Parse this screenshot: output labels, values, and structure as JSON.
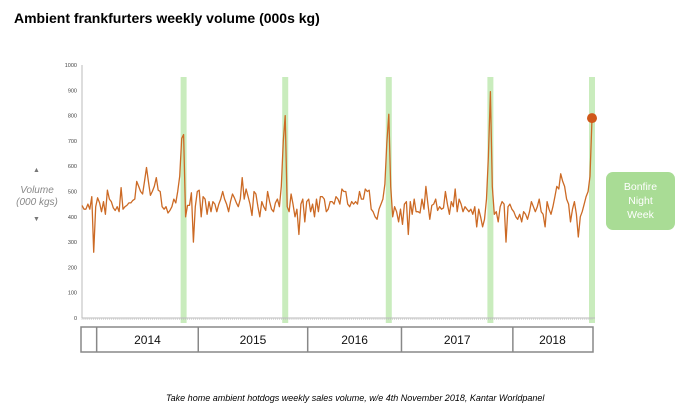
{
  "chart_data": {
    "type": "line",
    "title": "Ambient frankfurters weekly volume (000s kg)",
    "ylabel": "Volume (000 kgs)",
    "xlabel": "",
    "ylim": [
      0,
      1000
    ],
    "yticks": [
      0,
      100,
      200,
      300,
      400,
      500,
      600,
      700,
      800,
      900,
      1000
    ],
    "year_labels": [
      "",
      "2014",
      "2015",
      "2016",
      "2017",
      "2018"
    ],
    "year_week_counts": [
      8,
      52,
      56,
      48,
      57,
      41
    ],
    "highlight_weeks": [
      52,
      104,
      157,
      209,
      261
    ],
    "series": [
      {
        "name": "Weekly volume",
        "color": "#cc6a25",
        "values": [
          445,
          430,
          430,
          450,
          430,
          480,
          260,
          440,
          475,
          455,
          420,
          460,
          410,
          505,
          470,
          460,
          435,
          425,
          440,
          420,
          515,
          430,
          440,
          445,
          455,
          455,
          465,
          470,
          540,
          520,
          500,
          490,
          540,
          595,
          540,
          485,
          500,
          520,
          555,
          505,
          500,
          440,
          430,
          440,
          415,
          425,
          440,
          470,
          455,
          500,
          560,
          710,
          725,
          400,
          445,
          445,
          495,
          300,
          440,
          500,
          505,
          400,
          480,
          470,
          410,
          460,
          420,
          460,
          450,
          420,
          450,
          470,
          500,
          470,
          450,
          420,
          460,
          490,
          475,
          455,
          440,
          470,
          555,
          470,
          510,
          480,
          450,
          405,
          500,
          490,
          440,
          400,
          460,
          440,
          425,
          500,
          460,
          430,
          420,
          455,
          470,
          440,
          520,
          700,
          800,
          440,
          420,
          490,
          450,
          400,
          430,
          330,
          450,
          470,
          380,
          460,
          470,
          420,
          450,
          400,
          470,
          420,
          480,
          480,
          470,
          420,
          430,
          460,
          460,
          450,
          480,
          470,
          450,
          510,
          500,
          500,
          450,
          440,
          460,
          450,
          460,
          450,
          500,
          470,
          470,
          510,
          500,
          505,
          430,
          420,
          400,
          390,
          430,
          450,
          470,
          530,
          690,
          805,
          520,
          400,
          440,
          420,
          380,
          430,
          370,
          450,
          460,
          330,
          460,
          410,
          470,
          420,
          420,
          415,
          470,
          430,
          520,
          450,
          390,
          445,
          450,
          470,
          425,
          440,
          430,
          435,
          500,
          450,
          410,
          460,
          440,
          510,
          420,
          470,
          450,
          420,
          440,
          430,
          420,
          430,
          410,
          440,
          360,
          430,
          400,
          360,
          390,
          470,
          640,
          895,
          520,
          410,
          420,
          380,
          440,
          460,
          450,
          300,
          440,
          450,
          430,
          420,
          400,
          390,
          410,
          380,
          420,
          410,
          390,
          420,
          460,
          440,
          420,
          440,
          470,
          420,
          410,
          360,
          460,
          430,
          410,
          440,
          480,
          520,
          510,
          570,
          540,
          520,
          470,
          450,
          380,
          430,
          460,
          410,
          320,
          400,
          420,
          450,
          480,
          500,
          560,
          790
        ]
      }
    ],
    "highlight_color": "#c9ecbd",
    "annotation": "Bonfire Night Week",
    "annotation_lines": [
      "Bonfire",
      "Night",
      "Week"
    ],
    "grid": false
  },
  "source": "Take home ambient hotdogs weekly sales volume, w/e 4th November 2018, Kantar Worldpanel",
  "ylabel_lines": [
    "Volume",
    "(000 kgs)"
  ]
}
